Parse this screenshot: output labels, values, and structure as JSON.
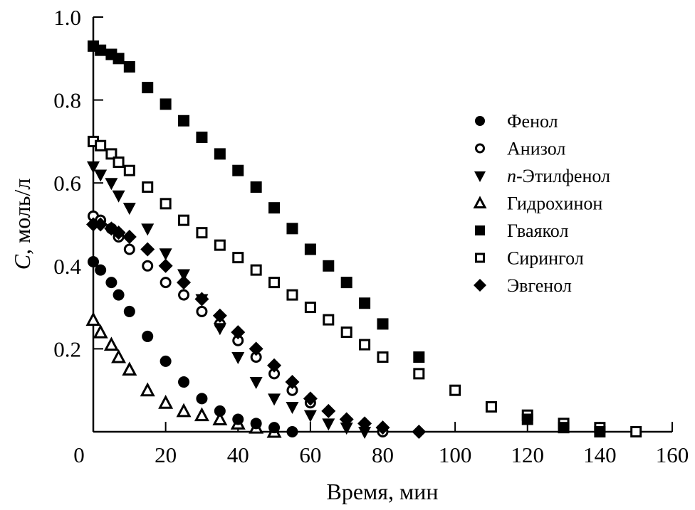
{
  "chart_data": {
    "type": "scatter",
    "xlabel": "Время, мин",
    "ylabel_italic": "C",
    "ylabel": ", моль/л",
    "xlim": [
      0,
      160
    ],
    "ylim": [
      0,
      1.0
    ],
    "xticks": [
      0,
      20,
      40,
      60,
      80,
      100,
      120,
      140,
      160
    ],
    "yticks": [
      0.2,
      0.4,
      0.6,
      0.8,
      1.0
    ],
    "xtick_labels": [
      "0",
      "20",
      "40",
      "60",
      "80",
      "100",
      "120",
      "140",
      "160"
    ],
    "ytick_labels": [
      "0.2",
      "0.4",
      "0.6",
      "0.8",
      "1.0"
    ],
    "grid": false,
    "legend_position": "right",
    "series": [
      {
        "name": "Фенол",
        "marker": "filled-circle",
        "x": [
          0,
          2,
          5,
          7,
          10,
          15,
          20,
          25,
          30,
          35,
          40,
          45,
          50,
          55
        ],
        "y": [
          0.41,
          0.39,
          0.36,
          0.33,
          0.29,
          0.23,
          0.17,
          0.12,
          0.08,
          0.05,
          0.03,
          0.02,
          0.01,
          0.0
        ]
      },
      {
        "name": "Анизол",
        "marker": "open-circle",
        "x": [
          0,
          2,
          5,
          7,
          10,
          15,
          20,
          25,
          30,
          35,
          40,
          45,
          50,
          55,
          60,
          80
        ],
        "y": [
          0.52,
          0.51,
          0.49,
          0.47,
          0.44,
          0.4,
          0.36,
          0.33,
          0.29,
          0.26,
          0.22,
          0.18,
          0.14,
          0.1,
          0.07,
          0.0
        ]
      },
      {
        "name_prefix": "n",
        "name": "-Этилфенол",
        "marker": "filled-triangle-down",
        "x": [
          0,
          2,
          5,
          7,
          10,
          15,
          20,
          25,
          30,
          35,
          40,
          45,
          50,
          55,
          60,
          65,
          70,
          75
        ],
        "y": [
          0.64,
          0.62,
          0.6,
          0.57,
          0.54,
          0.49,
          0.43,
          0.38,
          0.32,
          0.25,
          0.18,
          0.12,
          0.08,
          0.06,
          0.04,
          0.02,
          0.01,
          0.0
        ]
      },
      {
        "name": "Гидрохинон",
        "marker": "open-triangle-up",
        "x": [
          0,
          2,
          5,
          7,
          10,
          15,
          20,
          25,
          30,
          35,
          40,
          45,
          50
        ],
        "y": [
          0.27,
          0.24,
          0.21,
          0.18,
          0.15,
          0.1,
          0.07,
          0.05,
          0.04,
          0.03,
          0.02,
          0.01,
          0.0
        ]
      },
      {
        "name": "Гваякол",
        "marker": "filled-square",
        "x": [
          0,
          2,
          5,
          7,
          10,
          15,
          20,
          25,
          30,
          35,
          40,
          45,
          50,
          55,
          60,
          65,
          70,
          75,
          80,
          90,
          120,
          130,
          140
        ],
        "y": [
          0.93,
          0.92,
          0.91,
          0.9,
          0.88,
          0.83,
          0.79,
          0.75,
          0.71,
          0.67,
          0.63,
          0.59,
          0.54,
          0.49,
          0.44,
          0.4,
          0.36,
          0.31,
          0.26,
          0.18,
          0.03,
          0.01,
          0.0
        ]
      },
      {
        "name": "Сирингол",
        "marker": "open-square",
        "x": [
          0,
          2,
          5,
          7,
          10,
          15,
          20,
          25,
          30,
          35,
          40,
          45,
          50,
          55,
          60,
          65,
          70,
          75,
          80,
          90,
          100,
          110,
          120,
          130,
          140,
          150
        ],
        "y": [
          0.7,
          0.69,
          0.67,
          0.65,
          0.63,
          0.59,
          0.55,
          0.51,
          0.48,
          0.45,
          0.42,
          0.39,
          0.36,
          0.33,
          0.3,
          0.27,
          0.24,
          0.21,
          0.18,
          0.14,
          0.1,
          0.06,
          0.04,
          0.02,
          0.01,
          0.0
        ]
      },
      {
        "name": "Эвгенол",
        "marker": "filled-diamond",
        "x": [
          0,
          2,
          5,
          7,
          10,
          15,
          20,
          25,
          30,
          35,
          40,
          45,
          50,
          55,
          60,
          65,
          70,
          75,
          80,
          90
        ],
        "y": [
          0.5,
          0.5,
          0.49,
          0.48,
          0.47,
          0.44,
          0.4,
          0.36,
          0.32,
          0.28,
          0.24,
          0.2,
          0.16,
          0.12,
          0.08,
          0.05,
          0.03,
          0.02,
          0.01,
          0.0
        ]
      }
    ]
  }
}
